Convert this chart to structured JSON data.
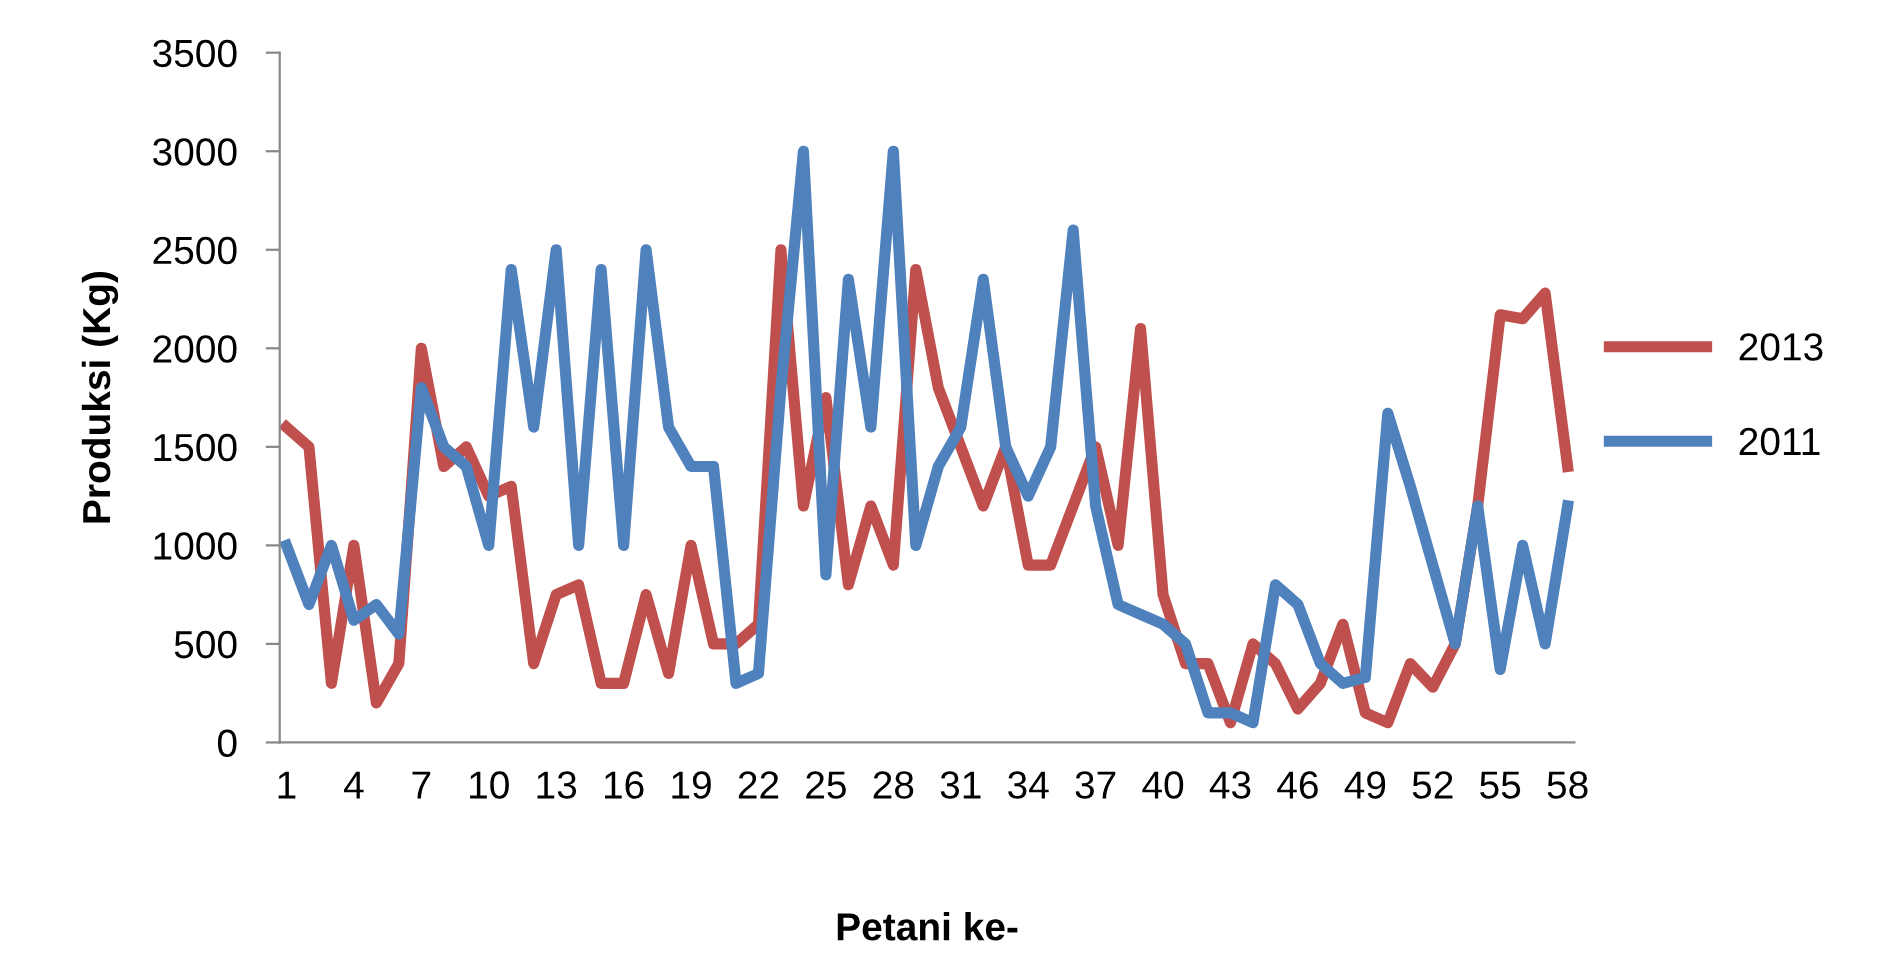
{
  "chart_data": {
    "type": "line",
    "xlabel": "Petani ke-",
    "ylabel": "Produksi (Kg)",
    "categories": [
      "1",
      null,
      null,
      "4",
      null,
      null,
      "7",
      null,
      null,
      "10",
      null,
      null,
      "13",
      null,
      null,
      "16",
      null,
      null,
      "19",
      null,
      null,
      "22",
      null,
      null,
      "25",
      null,
      null,
      "28",
      null,
      null,
      "31",
      null,
      null,
      "34",
      null,
      null,
      "37",
      null,
      null,
      "40",
      null,
      null,
      "43",
      null,
      null,
      "46",
      null,
      null,
      "49",
      null,
      null,
      "52",
      null,
      null,
      "55",
      null,
      null,
      "58"
    ],
    "series": [
      {
        "name": "2013",
        "color": "#c0504d",
        "values": [
          1600,
          1500,
          300,
          1000,
          200,
          400,
          2000,
          1400,
          1500,
          1250,
          1300,
          400,
          750,
          800,
          300,
          300,
          750,
          350,
          1000,
          500,
          500,
          600,
          2500,
          1200,
          1750,
          800,
          1200,
          900,
          2400,
          1800,
          1500,
          1200,
          1500,
          900,
          900,
          1200,
          1500,
          1000,
          2100,
          750,
          400,
          400,
          100,
          500,
          400,
          170,
          300,
          600,
          150,
          100,
          400,
          280,
          500,
          1200,
          2170,
          2150,
          2280,
          1400
        ]
      },
      {
        "name": "2011",
        "color": "#4f81bd",
        "values": [
          1000,
          700,
          1000,
          620,
          700,
          550,
          1800,
          1500,
          1400,
          1000,
          2400,
          1600,
          2500,
          1000,
          2400,
          1000,
          2500,
          1600,
          1400,
          1400,
          300,
          350,
          1800,
          3000,
          850,
          2350,
          1600,
          3000,
          1000,
          1400,
          1600,
          2350,
          1500,
          1250,
          1500,
          2600,
          1200,
          700,
          650,
          600,
          500,
          150,
          150,
          100,
          800,
          700,
          400,
          300,
          330,
          1670,
          1300,
          900,
          500,
          1200,
          370,
          1000,
          500,
          1200
        ]
      }
    ],
    "ylim": [
      0,
      3500
    ],
    "yticks": [
      0,
      500,
      1000,
      1500,
      2000,
      2500,
      3000,
      3500
    ],
    "grid": false,
    "legend": "right",
    "marker": "none",
    "line_style": "solid"
  }
}
